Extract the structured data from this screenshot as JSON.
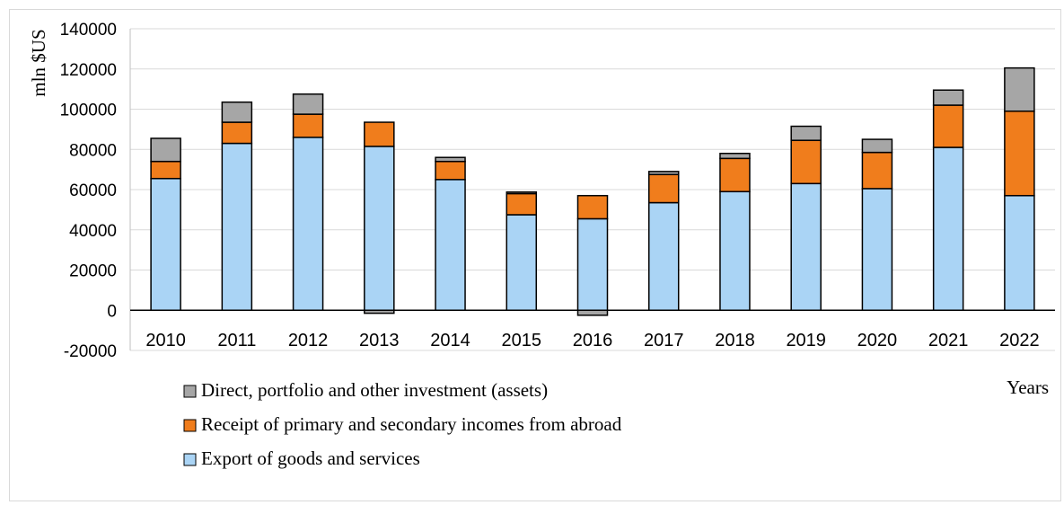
{
  "chart_data": {
    "type": "bar",
    "stacked": true,
    "categories": [
      "2010",
      "2011",
      "2012",
      "2013",
      "2014",
      "2015",
      "2016",
      "2017",
      "2018",
      "2019",
      "2020",
      "2021",
      "2022"
    ],
    "series": [
      {
        "name": "Export of goods and services",
        "color": "#aad4f5",
        "values": [
          65500,
          83000,
          86000,
          81500,
          65000,
          47500,
          45500,
          53500,
          59000,
          63000,
          60500,
          81000,
          57000
        ]
      },
      {
        "name": "Receipt of primary and secondary incomes from abroad",
        "color": "#f07d1c",
        "values": [
          8500,
          10500,
          11500,
          12000,
          9000,
          10500,
          11500,
          14000,
          16500,
          21500,
          18000,
          21000,
          42000
        ]
      },
      {
        "name": "Direct, portfolio and other investment (assets)",
        "color": "#a6a6a6",
        "values": [
          11500,
          10000,
          10000,
          -1500,
          2000,
          800,
          -2500,
          1500,
          2500,
          7000,
          6500,
          7500,
          21500
        ]
      }
    ],
    "ylabel": "mln $US",
    "xlabel": "Years",
    "ylim": [
      -20000,
      140000
    ],
    "yticks": [
      140000,
      120000,
      100000,
      80000,
      60000,
      40000,
      20000,
      0,
      -20000
    ],
    "ytick_labels": [
      "140000",
      "120000",
      "100000",
      "80000",
      "60000",
      "40000",
      "20000",
      "0",
      "-20000"
    ],
    "grid": true,
    "legend_position": "bottom"
  }
}
